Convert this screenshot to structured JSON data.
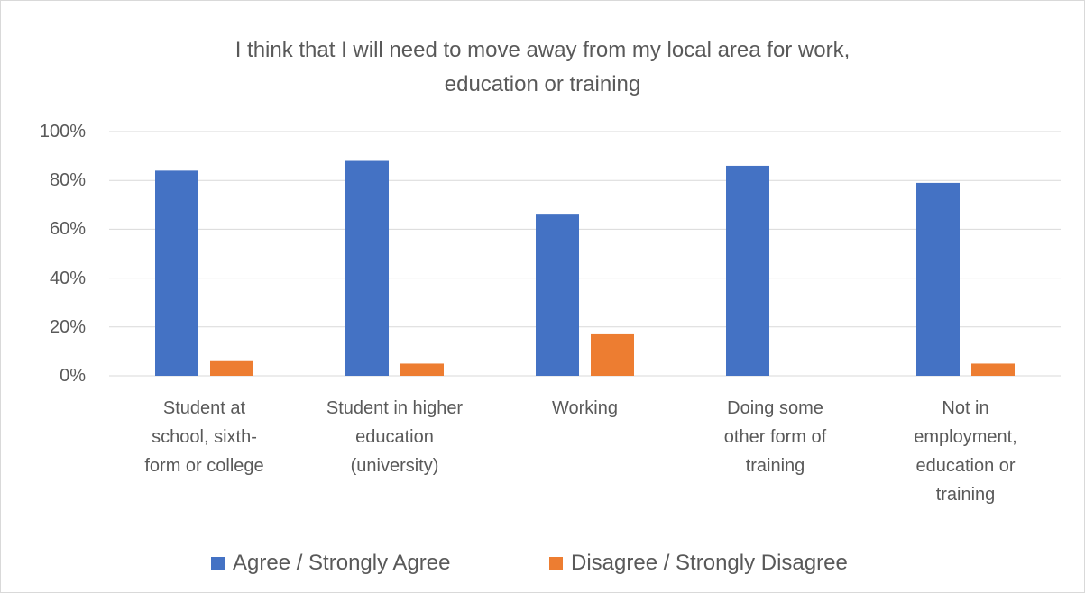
{
  "chart_data": {
    "type": "bar",
    "title": "I think that I will need to move away from my local area for work,\neducation or training",
    "categories": [
      "Student at\nschool, sixth-\nform or college",
      "Student in higher\neducation\n(university)",
      "Working",
      "Doing some\nother form of\ntraining",
      "Not in\nemployment,\neducation or\ntraining"
    ],
    "series": [
      {
        "name": "Agree / Strongly Agree",
        "color": "#4472c4",
        "values": [
          84,
          88,
          66,
          86,
          79
        ]
      },
      {
        "name": "Disagree / Strongly Disagree",
        "color": "#ed7d31",
        "values": [
          6,
          5,
          17,
          0,
          5
        ]
      }
    ],
    "ylim": [
      0,
      100
    ],
    "yticks": [
      {
        "value": 0,
        "label": "0%"
      },
      {
        "value": 20,
        "label": "20%"
      },
      {
        "value": 40,
        "label": "40%"
      },
      {
        "value": 60,
        "label": "60%"
      },
      {
        "value": 80,
        "label": "80%"
      },
      {
        "value": 100,
        "label": "100%"
      }
    ],
    "grid": true,
    "legend": "bottom"
  }
}
